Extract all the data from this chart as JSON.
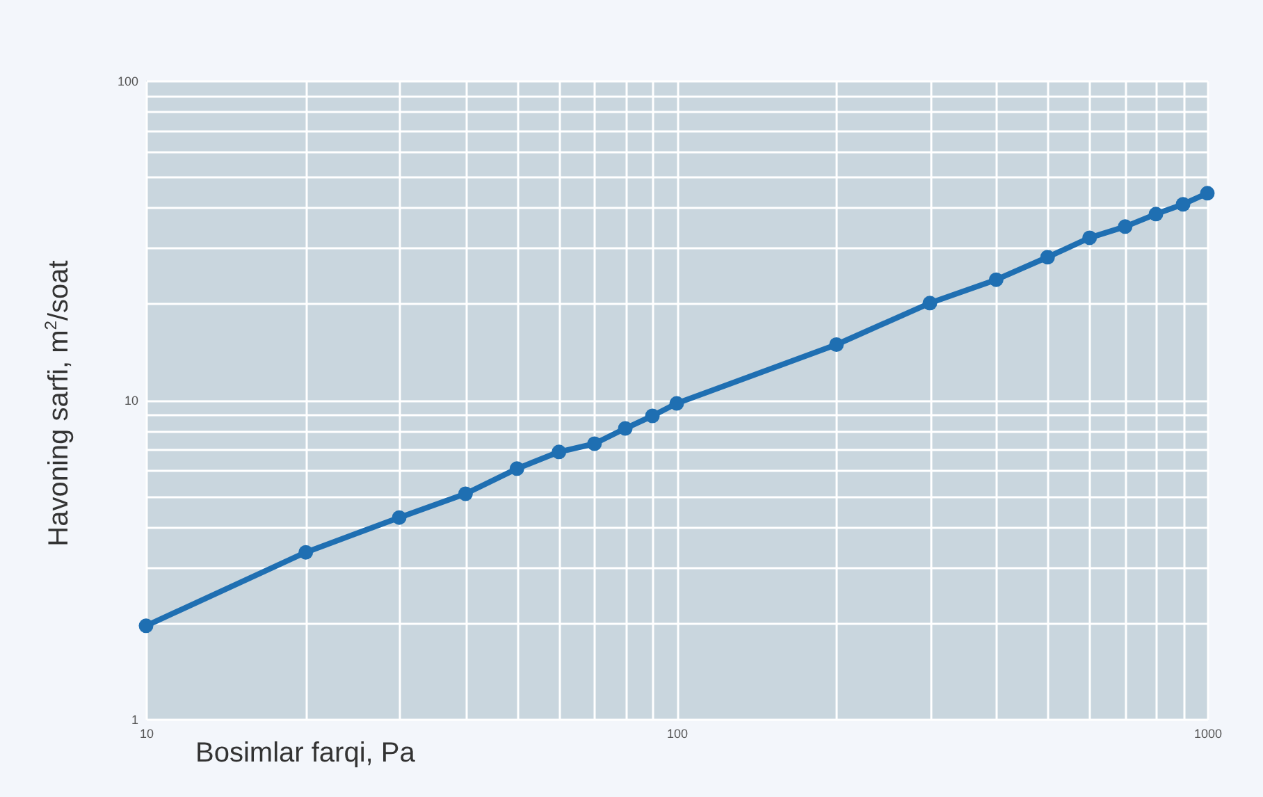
{
  "chart_data": {
    "type": "line",
    "xlabel": "Bosimlar farqi, Pa",
    "ylabel": "Havoning sarfi, m$^{2}$/soat",
    "log": "xy",
    "grid": true,
    "marker": "circle",
    "line_style": "solid",
    "x": [
      10,
      20,
      30,
      40,
      50,
      60,
      70,
      80,
      90,
      100,
      200,
      300,
      400,
      500,
      600,
      700,
      800,
      900,
      1000
    ],
    "series": [
      {
        "color": "#1f6fb2",
        "values": [
          1.96,
          3.33,
          4.28,
          5.08,
          6.09,
          6.87,
          7.29,
          8.14,
          8.91,
          9.75,
          14.9,
          20.1,
          23.8,
          28.0,
          32.2,
          34.9,
          38.2,
          41.0,
          44.4
        ]
      }
    ],
    "xlim": [
      10,
      1000
    ],
    "ylim": [
      1,
      100
    ],
    "xticks": [
      10,
      {
        "value": 20,
        "label": null
      },
      {
        "value": 30,
        "label": null
      },
      {
        "value": 40,
        "label": null
      },
      {
        "value": 50,
        "label": null
      },
      {
        "value": 60,
        "label": null
      },
      {
        "value": 70,
        "label": null
      },
      {
        "value": 80,
        "label": null
      },
      {
        "value": 90,
        "label": null
      },
      100,
      {
        "value": 200,
        "label": null
      },
      {
        "value": 300,
        "label": null
      },
      {
        "value": 400,
        "label": null
      },
      {
        "value": 500,
        "label": null
      },
      {
        "value": 600,
        "label": null
      },
      {
        "value": 700,
        "label": null
      },
      {
        "value": 800,
        "label": null
      },
      {
        "value": 900,
        "label": null
      },
      1000
    ],
    "yticks": [
      1,
      {
        "value": 2,
        "label": null
      },
      {
        "value": 3,
        "label": null
      },
      {
        "value": 4,
        "label": null
      },
      {
        "value": 5,
        "label": null
      },
      {
        "value": 6,
        "label": null
      },
      {
        "value": 7,
        "label": null
      },
      {
        "value": 8,
        "label": null
      },
      {
        "value": 9,
        "label": null
      },
      10,
      {
        "value": 20,
        "label": null
      },
      {
        "value": 30,
        "label": null
      },
      {
        "value": 40,
        "label": null
      },
      {
        "value": 50,
        "label": null
      },
      {
        "value": 60,
        "label": null
      },
      {
        "value": 70,
        "label": null
      },
      {
        "value": 80,
        "label": null
      },
      {
        "value": 90,
        "label": null
      },
      100
    ]
  }
}
